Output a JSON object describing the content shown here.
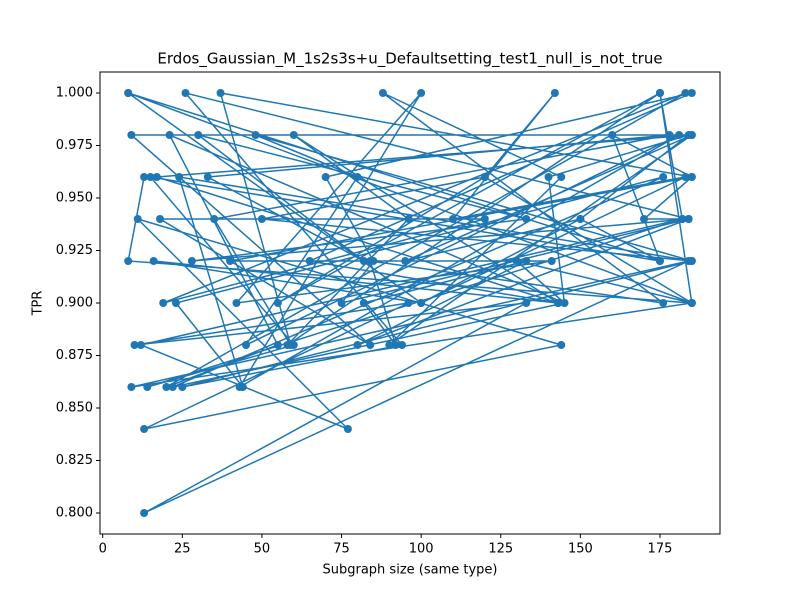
{
  "chart_data": {
    "type": "line",
    "title": "Erdos_Gaussian_M_1s2s3s+u_Defaultsetting_test1_null_is_not_true",
    "x_label": "Subgraph size (same type)",
    "y_label": "TPR",
    "series": [
      {
        "color": "#1f77b4",
        "x": [
          8,
          185,
          9,
          184,
          13,
          133,
          10,
          96,
          13,
          144,
          11,
          77,
          12,
          182,
          14,
          60,
          15,
          175,
          8,
          100,
          16,
          143,
          17,
          185,
          9,
          84,
          18,
          120,
          19,
          183,
          20,
          55,
          21,
          145,
          22,
          176,
          23,
          44,
          24,
          185,
          25,
          94,
          26,
          184,
          28,
          133,
          30,
          82,
          33,
          178,
          35,
          59,
          37,
          185,
          40,
          141,
          42,
          100,
          43,
          181,
          45,
          80,
          48,
          185,
          50,
          120,
          55,
          175,
          58,
          96,
          60,
          143,
          65,
          185,
          70,
          85,
          75,
          184,
          80,
          133,
          82,
          92,
          84,
          176,
          88,
          144,
          90,
          185,
          95,
          150,
          100,
          183,
          110,
          142,
          120,
          185,
          130,
          145,
          140,
          184,
          150,
          175,
          160,
          185,
          170,
          182,
          175,
          185,
          8,
          13
        ],
        "values": [
          1.0,
          0.9,
          0.86,
          0.92,
          0.8,
          0.9,
          0.88,
          0.9,
          0.84,
          0.88,
          0.94,
          0.84,
          0.88,
          0.94,
          0.86,
          0.88,
          0.96,
          0.92,
          1.0,
          0.9,
          0.92,
          0.9,
          0.96,
          0.98,
          0.98,
          0.88,
          0.94,
          0.94,
          0.9,
          1.0,
          0.86,
          0.88,
          0.98,
          0.9,
          0.86,
          0.96,
          0.9,
          0.86,
          0.96,
          0.92,
          0.86,
          0.88,
          1.0,
          0.94,
          0.92,
          0.94,
          0.98,
          0.92,
          0.96,
          0.98,
          0.94,
          0.88,
          1.0,
          0.96,
          0.92,
          0.92,
          0.9,
          1.0,
          0.86,
          0.98,
          0.88,
          0.96,
          0.98,
          0.92,
          0.94,
          0.96,
          0.9,
          1.0,
          0.88,
          0.94,
          0.98,
          0.9,
          0.92,
          1.0,
          0.96,
          0.92,
          0.9,
          0.94,
          0.88,
          0.92,
          0.9,
          0.88,
          0.92,
          0.9,
          1.0,
          0.96,
          0.88,
          0.98,
          0.92,
          0.94,
          0.9,
          0.96,
          0.94,
          1.0,
          0.96,
          0.9,
          0.92,
          0.9,
          0.96,
          0.98,
          0.94,
          0.92,
          0.98,
          0.96,
          0.94,
          0.94,
          1.0,
          0.9,
          0.92,
          0.96
        ]
      }
    ],
    "xlim": [
      -0.85,
      193.85
    ],
    "ylim": [
      0.79,
      1.01
    ],
    "xticks": [
      0,
      25,
      50,
      75,
      100,
      125,
      150,
      175
    ],
    "yticks": [
      {
        "value": 0.8,
        "label": "0.800"
      },
      {
        "value": 0.825,
        "label": "0.825"
      },
      {
        "value": 0.85,
        "label": "0.850"
      },
      {
        "value": 0.875,
        "label": "0.875"
      },
      {
        "value": 0.9,
        "label": "0.900"
      },
      {
        "value": 0.925,
        "label": "0.925"
      },
      {
        "value": 0.95,
        "label": "0.950"
      },
      {
        "value": 0.975,
        "label": "0.975"
      },
      {
        "value": 1.0,
        "label": "1.000"
      }
    ]
  }
}
